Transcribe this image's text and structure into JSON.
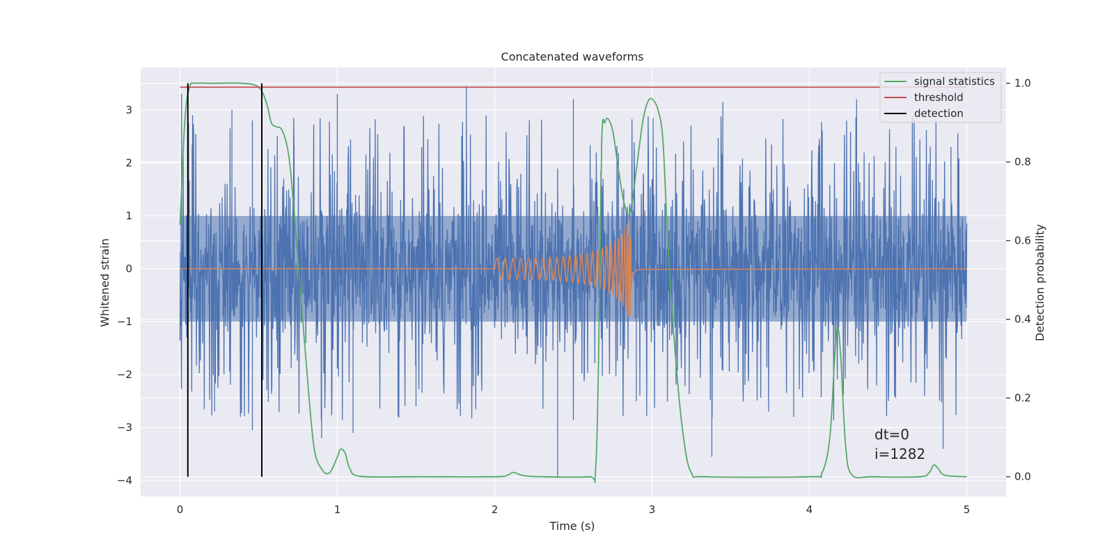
{
  "chart_data": {
    "type": "line",
    "title": "Concatenated waveforms",
    "xlabel": "Time (s)",
    "ylabel": "Whitened strain",
    "y2label": "Detection probability",
    "xlim": [
      -0.25,
      5.25
    ],
    "ylim": [
      -4.3,
      3.8
    ],
    "y2lim": [
      -0.05,
      1.04
    ],
    "xticks": [
      0,
      1,
      2,
      3,
      4,
      5
    ],
    "xtick_labels": [
      "0",
      "1",
      "2",
      "3",
      "4",
      "5"
    ],
    "yticks": [
      -4,
      -3,
      -2,
      -1,
      0,
      1,
      2,
      3
    ],
    "ytick_labels": [
      "−4",
      "−3",
      "−2",
      "−1",
      "0",
      "1",
      "2",
      "3"
    ],
    "y2ticks": [
      0,
      0.2,
      0.4,
      0.6,
      0.8,
      1.0
    ],
    "y2tick_labels": [
      "0.0",
      "0.2",
      "0.4",
      "0.6",
      "0.8",
      "1.0"
    ],
    "grid": true,
    "legend_position": "top-right",
    "annotations": [
      "dt=0",
      "i=1282"
    ],
    "colors": {
      "noise": "#4c72b0",
      "injected_signal": "#dd8452",
      "signal_statistics": "#55a868",
      "threshold": "#c44e52",
      "detection": "#000000",
      "background": "#eaeaf2",
      "grid": "#ffffff"
    },
    "series": [
      {
        "name": "signal statistics",
        "axis": "right",
        "x": [
          0.0,
          0.03,
          0.06,
          0.1,
          0.2,
          0.4,
          0.5,
          0.55,
          0.58,
          0.61,
          0.65,
          0.69,
          0.72,
          0.75,
          0.8,
          0.85,
          0.9,
          0.95,
          1.0,
          1.02,
          1.05,
          1.08,
          1.15,
          1.5,
          2.0,
          2.08,
          2.12,
          2.18,
          2.3,
          2.6,
          2.64,
          2.66,
          2.68,
          2.7,
          2.72,
          2.75,
          2.78,
          2.82,
          2.86,
          2.9,
          2.94,
          2.97,
          3.0,
          3.04,
          3.07,
          3.1,
          3.15,
          3.2,
          3.25,
          3.35,
          4.0,
          4.08,
          4.13,
          4.16,
          4.18,
          4.2,
          4.23,
          4.27,
          4.4,
          4.7,
          4.76,
          4.79,
          4.82,
          4.86,
          5.0
        ],
        "y": [
          0.64,
          0.9,
          0.99,
          1.0,
          1.0,
          1.0,
          0.99,
          0.95,
          0.9,
          0.89,
          0.88,
          0.82,
          0.7,
          0.55,
          0.3,
          0.08,
          0.02,
          0.01,
          0.05,
          0.07,
          0.06,
          0.02,
          0.001,
          0.0,
          0.0,
          0.004,
          0.011,
          0.003,
          0.0,
          0.0,
          0.01,
          0.3,
          0.85,
          0.9,
          0.91,
          0.88,
          0.8,
          0.7,
          0.67,
          0.78,
          0.9,
          0.95,
          0.96,
          0.93,
          0.85,
          0.6,
          0.3,
          0.1,
          0.01,
          0.0,
          0.0,
          0.01,
          0.1,
          0.3,
          0.38,
          0.3,
          0.08,
          0.005,
          0.0,
          0.0,
          0.01,
          0.03,
          0.02,
          0.004,
          0.0
        ]
      },
      {
        "name": "threshold",
        "axis": "right",
        "x": [
          0.0,
          5.0
        ],
        "y": [
          0.99,
          0.99
        ]
      },
      {
        "name": "detection",
        "axis": "right",
        "segments": [
          {
            "x": 0.05,
            "y": [
              0.0,
              1.0
            ]
          },
          {
            "x": 0.52,
            "y": [
              0.0,
              1.0
            ]
          }
        ]
      },
      {
        "axis": "left",
        "x_range": [
          0.0,
          5.0
        ],
        "amplitude_band": [
          -1.0,
          1.0
        ],
        "peaks": [
          {
            "x": 0.01,
            "y": 3.3
          },
          {
            "x": 0.08,
            "y": 2.9
          },
          {
            "x": 0.33,
            "y": 3.0
          },
          {
            "x": 0.46,
            "y": 2.8
          },
          {
            "x": 1.0,
            "y": 3.3
          },
          {
            "x": 1.82,
            "y": 3.45
          },
          {
            "x": 2.5,
            "y": 3.2
          },
          {
            "x": 3.45,
            "y": 3.15
          },
          {
            "x": 4.3,
            "y": 3.2
          },
          {
            "x": 4.9,
            "y": 2.3
          },
          {
            "x": 0.46,
            "y": -3.05
          },
          {
            "x": 0.9,
            "y": -3.2
          },
          {
            "x": 1.1,
            "y": -3.1
          },
          {
            "x": 2.4,
            "y": -3.95
          },
          {
            "x": 3.38,
            "y": -3.55
          },
          {
            "x": 4.85,
            "y": -3.4
          },
          {
            "x": 0.22,
            "y": -2.7
          },
          {
            "x": 1.5,
            "y": -2.6
          },
          {
            "x": 2.9,
            "y": -2.5
          },
          {
            "x": 3.9,
            "y": -2.8
          }
        ]
      },
      {
        "axis": "left",
        "x": [
          2.0,
          2.2,
          2.4,
          2.6,
          2.7,
          2.78,
          2.82,
          2.85,
          2.86,
          2.87,
          2.9,
          3.0,
          5.0
        ],
        "amplitude": [
          0.2,
          0.2,
          0.22,
          0.3,
          0.4,
          0.55,
          0.7,
          0.9,
          0.95,
          0.3,
          0.05,
          0.0,
          0.0
        ]
      }
    ]
  }
}
